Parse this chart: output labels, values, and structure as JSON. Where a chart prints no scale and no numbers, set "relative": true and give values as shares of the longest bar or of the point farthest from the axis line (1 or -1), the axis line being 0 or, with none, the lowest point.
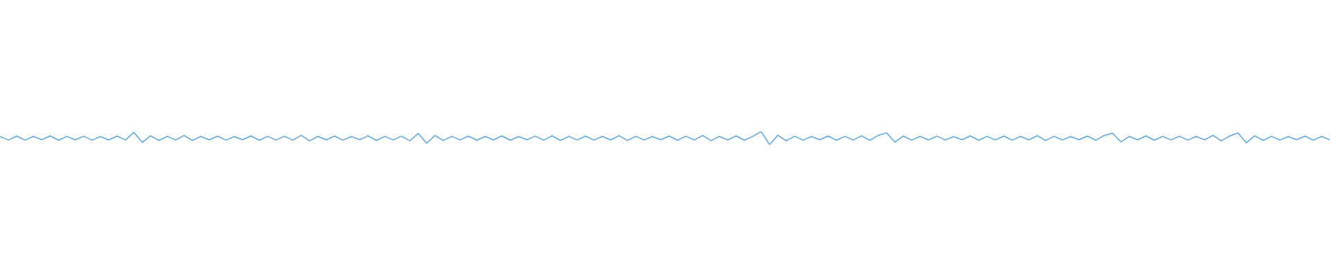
{
  "chart_data": {
    "type": "line",
    "relative": true,
    "categories": [
      null,
      null,
      null,
      null,
      null,
      null,
      null,
      null,
      null,
      null,
      null,
      null,
      null,
      null,
      null,
      null,
      null,
      null,
      null,
      null,
      null,
      null,
      null,
      null,
      null,
      null,
      null,
      null,
      null,
      null,
      null,
      null,
      null,
      null,
      null,
      null,
      null,
      null,
      null,
      null,
      null,
      null,
      null,
      null,
      null,
      null,
      null,
      null,
      null,
      null,
      null,
      null,
      null,
      null,
      null,
      null,
      null,
      null,
      null,
      null,
      null,
      null,
      null,
      null,
      null,
      null,
      null,
      null,
      null,
      null,
      null,
      null,
      null,
      null,
      null,
      null,
      null,
      null,
      null,
      null,
      null,
      null,
      null,
      null,
      null,
      null,
      null,
      null,
      null,
      null,
      null,
      null,
      null,
      null,
      null,
      null,
      null,
      null,
      null,
      null,
      null,
      null,
      null,
      null,
      null,
      null,
      null,
      null,
      null,
      null,
      null,
      null,
      null,
      null,
      null,
      null,
      null,
      null,
      null,
      null,
      null,
      null,
      null,
      null,
      null,
      null,
      null,
      null,
      null,
      null,
      null,
      null,
      null,
      null,
      null,
      null,
      null,
      null,
      null,
      null,
      null,
      null,
      null,
      null,
      null,
      null,
      null,
      null,
      null,
      null,
      null,
      null,
      null,
      null,
      null,
      null,
      null,
      null,
      null,
      null
    ],
    "series": [
      {
        "color": "#5aa5dc",
        "values": [
          0.62,
          0.36,
          0.66,
          0.35,
          0.63,
          0.38,
          0.67,
          0.34,
          0.64,
          0.37,
          0.65,
          0.35,
          0.62,
          0.37,
          0.66,
          0.36,
          0.95,
          0.18,
          0.68,
          0.33,
          0.64,
          0.36,
          0.7,
          0.32,
          0.63,
          0.37,
          0.66,
          0.35,
          0.62,
          0.38,
          0.67,
          0.34,
          0.64,
          0.36,
          0.65,
          0.35,
          0.72,
          0.3,
          0.63,
          0.37,
          0.66,
          0.35,
          0.62,
          0.38,
          0.68,
          0.33,
          0.64,
          0.36,
          0.65,
          0.3,
          0.86,
          0.12,
          0.7,
          0.32,
          0.64,
          0.36,
          0.66,
          0.34,
          0.63,
          0.37,
          0.67,
          0.34,
          0.62,
          0.38,
          0.65,
          0.35,
          0.68,
          0.33,
          0.64,
          0.36,
          0.66,
          0.35,
          0.63,
          0.37,
          0.69,
          0.32,
          0.64,
          0.36,
          0.62,
          0.38,
          0.66,
          0.34,
          0.65,
          0.36,
          0.7,
          0.31,
          0.63,
          0.37,
          0.67,
          0.34,
          0.64,
          1,
          0,
          0.72,
          0.3,
          0.65,
          0.35,
          0.62,
          0.38,
          0.66,
          0.34,
          0.64,
          0.36,
          0.68,
          0.33,
          0.72,
          0.9,
          0.2,
          0.66,
          0.35,
          0.63,
          0.37,
          0.65,
          0.36,
          0.62,
          0.38,
          0.67,
          0.34,
          0.64,
          0.36,
          0.66,
          0.35,
          0.63,
          0.37,
          0.69,
          0.32,
          0.64,
          0.36,
          0.62,
          0.38,
          0.66,
          0.34,
          0.7,
          0.88,
          0.22,
          0.63,
          0.37,
          0.67,
          0.34,
          0.64,
          0.36,
          0.65,
          0.35,
          0.63,
          0.37,
          0.72,
          0.3,
          0.66,
          0.9,
          0.15,
          0.68,
          0.33,
          0.64,
          0.36,
          0.62,
          0.38,
          0.66,
          0.35,
          0.63,
          0.37
        ]
      }
    ]
  }
}
